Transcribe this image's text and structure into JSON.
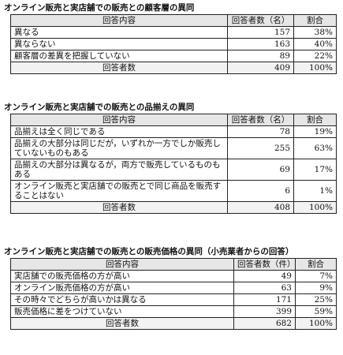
{
  "tables": [
    {
      "title": "オンライン販売と実店舗での販売との顧客層の異同",
      "headers": [
        "回答内容",
        "回答者数（名）",
        "割合"
      ],
      "rows": [
        {
          "label": "異なる",
          "count": "157",
          "pct": "38%"
        },
        {
          "label": "異ならない",
          "count": "163",
          "pct": "40%"
        },
        {
          "label": "顧客層の差異を把握していない",
          "count": "89",
          "pct": "22%"
        }
      ],
      "total": {
        "label": "回答者数",
        "count": "409",
        "pct": "100%"
      }
    },
    {
      "title": "オンライン販売と実店舗での販売との品揃えの異同",
      "headers": [
        "回答内容",
        "回答者数（名）",
        "割合"
      ],
      "rows": [
        {
          "label": "品揃えは全く同じである",
          "count": "78",
          "pct": "19%"
        },
        {
          "label": "品揃えの大部分は同じだが，いずれか一方でしか販売していないものもある",
          "count": "255",
          "pct": "63%"
        },
        {
          "label": "品揃えの大部分は異なるが，両方で販売しているものもある",
          "count": "69",
          "pct": "17%"
        },
        {
          "label": "オンライン販売と実店舗での販売とで同じ商品を販売することはない",
          "count": "6",
          "pct": "1%"
        }
      ],
      "total": {
        "label": "回答者数",
        "count": "408",
        "pct": "100%"
      }
    },
    {
      "title": "オンライン販売と実店舗での販売との販売価格の異同（小売業者からの回答）",
      "headers": [
        "回答内容",
        "回答者数（件）",
        "割合"
      ],
      "rows": [
        {
          "label": "実店舗での販売価格の方が高い",
          "count": "49",
          "pct": "7%"
        },
        {
          "label": "オンライン販売価格の方が高い",
          "count": "63",
          "pct": "9%"
        },
        {
          "label": "その時々でどちらが高いかは異なる",
          "count": "171",
          "pct": "25%"
        },
        {
          "label": "販売価格に差をつけていない",
          "count": "399",
          "pct": "59%"
        }
      ],
      "total": {
        "label": "回答者数",
        "count": "682",
        "pct": "100%"
      }
    }
  ]
}
